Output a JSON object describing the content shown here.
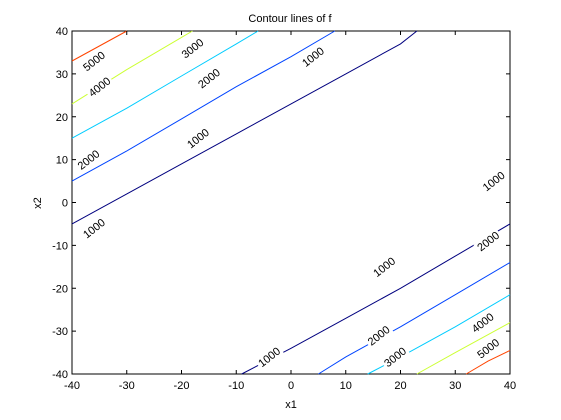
{
  "chart_data": {
    "type": "contour",
    "title": "Contour lines of f",
    "xlabel": "x1",
    "ylabel": "x2",
    "xlim": [
      -40,
      40
    ],
    "ylim": [
      -40,
      40
    ],
    "xticks": [
      -40,
      -30,
      -20,
      -10,
      0,
      10,
      20,
      30,
      40
    ],
    "yticks": [
      -40,
      -30,
      -20,
      -10,
      0,
      10,
      20,
      30,
      40
    ],
    "xtick_labels": [
      "-40",
      "-30",
      "-20",
      "-10",
      "0",
      "10",
      "20",
      "30",
      "40"
    ],
    "ytick_labels": [
      "-40",
      "-30",
      "-20",
      "-10",
      "0",
      "10",
      "20",
      "30",
      "40"
    ],
    "grid": false,
    "levels": [
      {
        "level": 1000,
        "color": "#00007f",
        "lines": [
          [
            [
              -40,
              -5
            ],
            [
              -30,
              2
            ],
            [
              -20,
              9
            ],
            [
              -10,
              16
            ],
            [
              0,
              23
            ],
            [
              10,
              30
            ],
            [
              20,
              37
            ],
            [
              23,
              40
            ]
          ],
          [
            [
              -9,
              -40
            ],
            [
              0,
              -34
            ],
            [
              10,
              -27
            ],
            [
              20,
              -20
            ],
            [
              30,
              -12.5
            ],
            [
              40,
              -5
            ]
          ]
        ],
        "labels": [
          {
            "x": -36,
            "y": -6,
            "text": "1000",
            "rot": -38
          },
          {
            "x": -17,
            "y": 15,
            "text": "1000",
            "rot": -38
          },
          {
            "x": 4,
            "y": 34,
            "text": "1000",
            "rot": -38
          },
          {
            "x": -4,
            "y": -36,
            "text": "1000",
            "rot": -38
          },
          {
            "x": 17,
            "y": -15,
            "text": "1000",
            "rot": -38
          },
          {
            "x": 37,
            "y": 5,
            "text": "1000",
            "rot": -38
          }
        ]
      },
      {
        "level": 2000,
        "color": "#0044ff",
        "lines": [
          [
            [
              -40,
              5
            ],
            [
              -30,
              12
            ],
            [
              -20,
              19.5
            ],
            [
              -10,
              27
            ],
            [
              0,
              34
            ],
            [
              8,
              40
            ]
          ],
          [
            [
              5,
              -40
            ],
            [
              10,
              -36
            ],
            [
              20,
              -29
            ],
            [
              30,
              -21.5
            ],
            [
              40,
              -14
            ]
          ]
        ],
        "labels": [
          {
            "x": -37,
            "y": 10,
            "text": "2000",
            "rot": -38
          },
          {
            "x": -15,
            "y": 29,
            "text": "2000",
            "rot": -38
          },
          {
            "x": 16,
            "y": -31,
            "text": "2000",
            "rot": -38
          },
          {
            "x": 36,
            "y": -9,
            "text": "2000",
            "rot": -38
          }
        ]
      },
      {
        "level": 3000,
        "color": "#00ccff",
        "lines": [
          [
            [
              -40,
              15
            ],
            [
              -30,
              22
            ],
            [
              -20,
              29.5
            ],
            [
              -10,
              37
            ],
            [
              -6,
              40
            ]
          ],
          [
            [
              14,
              -40
            ],
            [
              20,
              -36
            ],
            [
              30,
              -29
            ],
            [
              40,
              -21.5
            ]
          ]
        ],
        "labels": [
          {
            "x": -18,
            "y": 36,
            "text": "3000",
            "rot": -38
          },
          {
            "x": 19,
            "y": -36,
            "text": "3000",
            "rot": -38
          }
        ]
      },
      {
        "level": 4000,
        "color": "#ccff33",
        "lines": [
          [
            [
              -40,
              23
            ],
            [
              -30,
              31
            ],
            [
              -20,
              38.5
            ],
            [
              -18,
              40
            ]
          ],
          [
            [
              23,
              -40
            ],
            [
              30,
              -35
            ],
            [
              40,
              -28
            ]
          ]
        ],
        "labels": [
          {
            "x": -35,
            "y": 27,
            "text": "4000",
            "rot": -38
          },
          {
            "x": 35,
            "y": -28,
            "text": "4000",
            "rot": -38
          }
        ]
      },
      {
        "level": 5000,
        "color": "#ff4400",
        "lines": [
          [
            [
              -40,
              33
            ],
            [
              -35,
              36.5
            ],
            [
              -30,
              40
            ]
          ],
          [
            [
              32,
              -40
            ],
            [
              36,
              -37
            ],
            [
              40,
              -34.5
            ]
          ]
        ],
        "labels": [
          {
            "x": -36,
            "y": 33,
            "text": "5000",
            "rot": -38
          },
          {
            "x": 36,
            "y": -34,
            "text": "5000",
            "rot": -38
          }
        ]
      }
    ]
  }
}
